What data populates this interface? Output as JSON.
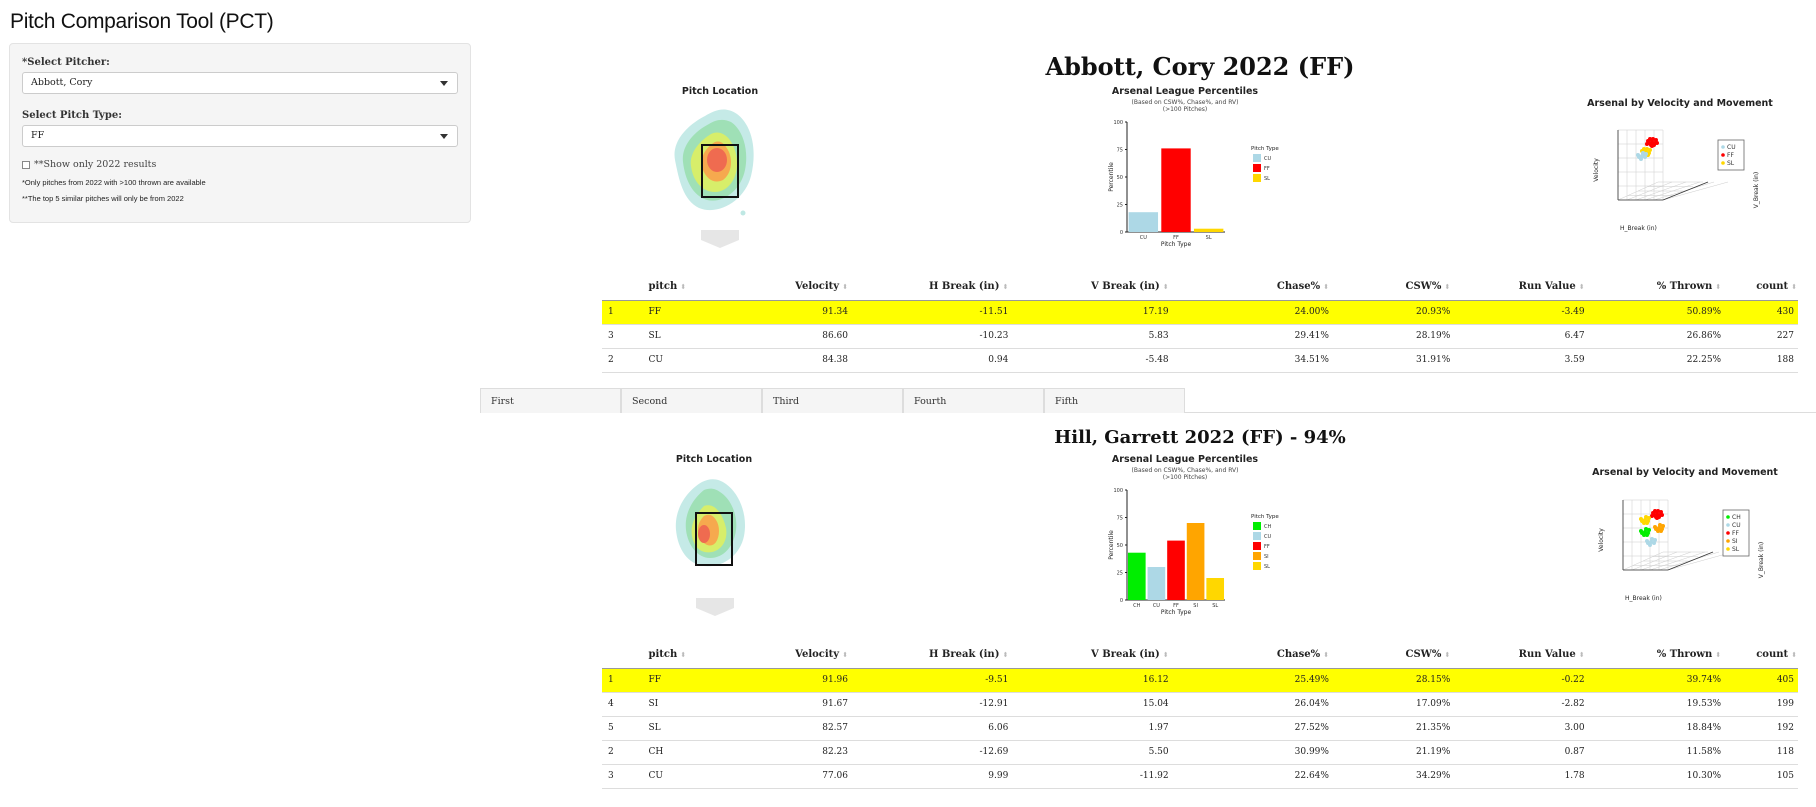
{
  "app": {
    "title": "Pitch Comparison Tool (PCT)"
  },
  "sidebar": {
    "pitcher_label": "*Select Pitcher:",
    "pitcher_value": "Abbott, Cory",
    "pitch_type_label": "Select Pitch Type:",
    "pitch_type_value": "FF",
    "checkbox_label": "**Show only 2022 results",
    "note1": "*Only pitches from 2022 with >100 thrown are available",
    "note2": "**The top 5 similar pitches will only be from 2022"
  },
  "tabs": [
    "First",
    "Second",
    "Third",
    "Fourth",
    "Fifth"
  ],
  "columns": [
    "pitch",
    "Velocity",
    "H Break (in)",
    "V Break (in)",
    "Chase%",
    "CSW%",
    "Run Value",
    "% Thrown",
    "count"
  ],
  "colors": {
    "CH": "#00ee00",
    "CU": "#add8e6",
    "FF": "#ff0000",
    "SI": "#ffa500",
    "SL": "#ffd700",
    "highlight": "#ffff00"
  },
  "sections": [
    {
      "title": "Abbott, Cory 2022 (FF)",
      "location_title": "Pitch Location",
      "percentile_title": "Arsenal League Percentiles",
      "percentile_sub": "(Based on CSW%, Chase%, and RV)",
      "percentile_sub2": "(>100 Pitches)",
      "movement_title": "Arsenal by Velocity and Movement",
      "rows": [
        {
          "idx": "1",
          "pitch": "FF",
          "velocity": "91.34",
          "hbreak": "-11.51",
          "vbreak": "17.19",
          "chase": "24.00%",
          "csw": "20.93%",
          "rv": "-3.49",
          "thrown": "50.89%",
          "count": "430"
        },
        {
          "idx": "3",
          "pitch": "SL",
          "velocity": "86.60",
          "hbreak": "-10.23",
          "vbreak": "5.83",
          "chase": "29.41%",
          "csw": "28.19%",
          "rv": "6.47",
          "thrown": "26.86%",
          "count": "227"
        },
        {
          "idx": "2",
          "pitch": "CU",
          "velocity": "84.38",
          "hbreak": "0.94",
          "vbreak": "-5.48",
          "chase": "34.51%",
          "csw": "31.91%",
          "rv": "3.59",
          "thrown": "22.25%",
          "count": "188"
        }
      ]
    },
    {
      "title": "Hill, Garrett 2022 (FF) - 94%",
      "location_title": "Pitch Location",
      "percentile_title": "Arsenal League Percentiles",
      "percentile_sub": "(Based on CSW%, Chase%, and RV)",
      "percentile_sub2": "(>100 Pitches)",
      "movement_title": "Arsenal by Velocity and Movement",
      "rows": [
        {
          "idx": "1",
          "pitch": "FF",
          "velocity": "91.96",
          "hbreak": "-9.51",
          "vbreak": "16.12",
          "chase": "25.49%",
          "csw": "28.15%",
          "rv": "-0.22",
          "thrown": "39.74%",
          "count": "405"
        },
        {
          "idx": "4",
          "pitch": "SI",
          "velocity": "91.67",
          "hbreak": "-12.91",
          "vbreak": "15.04",
          "chase": "26.04%",
          "csw": "17.09%",
          "rv": "-2.82",
          "thrown": "19.53%",
          "count": "199"
        },
        {
          "idx": "5",
          "pitch": "SL",
          "velocity": "82.57",
          "hbreak": "6.06",
          "vbreak": "1.97",
          "chase": "27.52%",
          "csw": "21.35%",
          "rv": "3.00",
          "thrown": "18.84%",
          "count": "192"
        },
        {
          "idx": "2",
          "pitch": "CH",
          "velocity": "82.23",
          "hbreak": "-12.69",
          "vbreak": "5.50",
          "chase": "30.99%",
          "csw": "21.19%",
          "rv": "0.87",
          "thrown": "11.58%",
          "count": "118"
        },
        {
          "idx": "3",
          "pitch": "CU",
          "velocity": "77.06",
          "hbreak": "9.99",
          "vbreak": "-11.92",
          "chase": "22.64%",
          "csw": "34.29%",
          "rv": "1.78",
          "thrown": "10.30%",
          "count": "105"
        }
      ]
    }
  ],
  "chart_data": [
    {
      "type": "bar",
      "legend_title": "Pitch Type",
      "xlabel": "Pitch Type",
      "ylabel": "Percentile",
      "ylim": [
        0,
        100
      ],
      "yticks": [
        0,
        25,
        50,
        75,
        100
      ],
      "legend_position": "right",
      "categories": [
        "CU",
        "FF",
        "SL"
      ],
      "values": [
        18,
        76,
        3
      ]
    },
    {
      "type": "bar",
      "legend_title": "Pitch Type",
      "xlabel": "Pitch Type",
      "ylabel": "Percentile",
      "ylim": [
        0,
        100
      ],
      "yticks": [
        0,
        25,
        50,
        75,
        100
      ],
      "legend_position": "right",
      "categories": [
        "CH",
        "CU",
        "FF",
        "SI",
        "SL"
      ],
      "values": [
        43,
        30,
        54,
        70,
        20
      ]
    },
    {
      "type": "scatter",
      "xlabel": "H_Break (in)",
      "ylabel": "Velocity",
      "zlabel": "V_Break (in)",
      "legend": [
        "CU",
        "FF",
        "SL"
      ]
    },
    {
      "type": "scatter",
      "xlabel": "H_Break (in)",
      "ylabel": "Velocity",
      "zlabel": "V_Break (in)",
      "legend": [
        "CH",
        "CU",
        "FF",
        "SI",
        "SL"
      ]
    }
  ]
}
